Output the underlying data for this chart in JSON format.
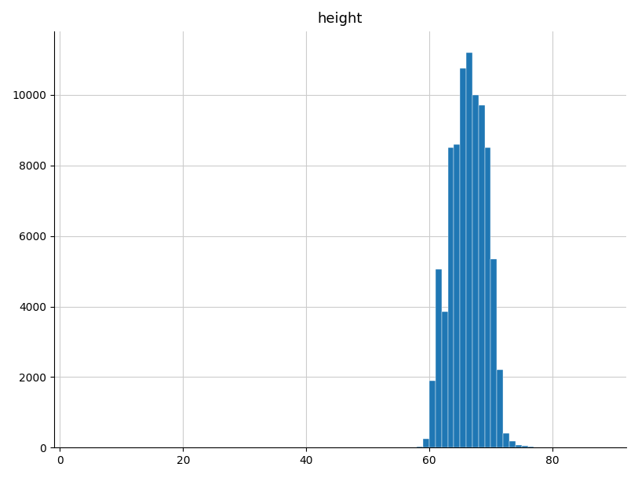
{
  "title": "height",
  "bar_color": "#1f77b4",
  "background_color": "#ffffff",
  "grid_color": "#cccccc",
  "xlim": [
    -1,
    92
  ],
  "ylim": [
    0,
    11800
  ],
  "xticks": [
    0,
    20,
    40,
    60,
    80
  ],
  "yticks": [
    0,
    2000,
    4000,
    6000,
    8000,
    10000
  ],
  "bin_edges": [
    55,
    56,
    57,
    58,
    59,
    60,
    61,
    62,
    63,
    64,
    65,
    66,
    67,
    68,
    69,
    70,
    71,
    72,
    73,
    74,
    75,
    76,
    77,
    78,
    79,
    80,
    81,
    82,
    84,
    90
  ],
  "bin_heights": [
    3,
    5,
    8,
    30,
    250,
    1900,
    5050,
    3850,
    8500,
    8600,
    10750,
    11200,
    10000,
    9700,
    8500,
    5350,
    2200,
    400,
    180,
    70,
    40,
    20,
    8,
    5,
    3,
    3,
    2,
    2,
    5
  ]
}
